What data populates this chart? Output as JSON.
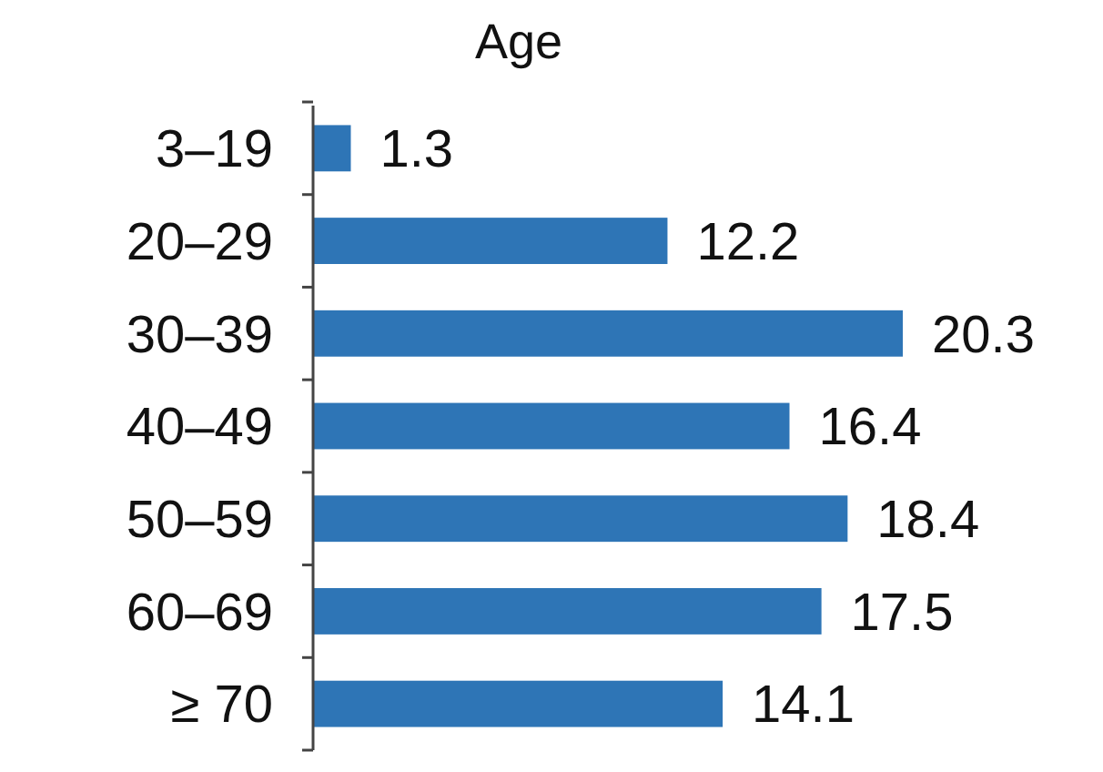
{
  "chart_data": {
    "type": "bar",
    "orientation": "horizontal",
    "title": "Age",
    "categories": [
      "3–19",
      "20–29",
      "30–39",
      "40–49",
      "50–59",
      "60–69",
      "≥ 70"
    ],
    "values": [
      1.3,
      12.2,
      20.3,
      16.4,
      18.4,
      17.5,
      14.1
    ],
    "color": "#2e75b6",
    "data_labels": true
  }
}
